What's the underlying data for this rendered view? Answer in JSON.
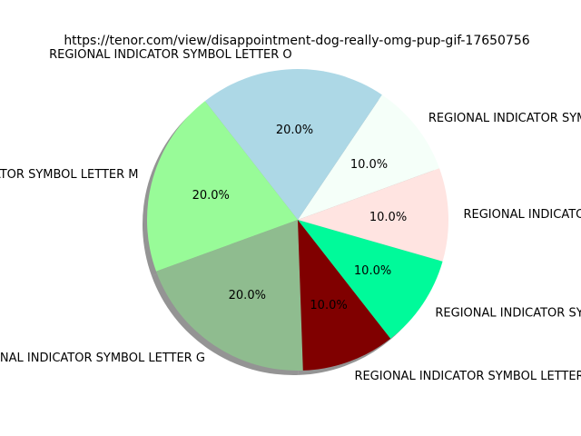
{
  "chart_data": {
    "type": "pie",
    "title": "https://tenor.com/view/disappointment-dog-really-omg-pup-gif-17650756",
    "start_angle_deg": 20,
    "direction": "counterclockwise",
    "shadow": true,
    "slices": [
      {
        "label": "REGIONAL INDICATOR SYMBOL LETTER S",
        "value": 10,
        "pct_label": "10.0%",
        "color": "#f5fff9"
      },
      {
        "label": "REGIONAL INDICATOR SYMBOL LETTER O",
        "value": 20,
        "pct_label": "20.0%",
        "color": "#add8e6"
      },
      {
        "label": "REGIONAL INDICATOR SYMBOL LETTER M",
        "value": 20,
        "pct_label": "20.0%",
        "color": "#98fb98"
      },
      {
        "label": "REGIONAL INDICATOR SYMBOL LETTER G",
        "value": 20,
        "pct_label": "20.0%",
        "color": "#8fbc8f"
      },
      {
        "label": "REGIONAL INDICATOR SYMBOL LETTER W",
        "value": 10,
        "pct_label": "10.0%",
        "color": "#800000"
      },
      {
        "label": "REGIONAL INDICATOR SYMBOL LETTER T",
        "value": 10,
        "pct_label": "10.0%",
        "color": "#00fa9a"
      },
      {
        "label": "REGIONAL INDICATOR SYMBOL LETTER F",
        "value": 10,
        "pct_label": "10.0%",
        "color": "#ffe4e1"
      }
    ]
  }
}
